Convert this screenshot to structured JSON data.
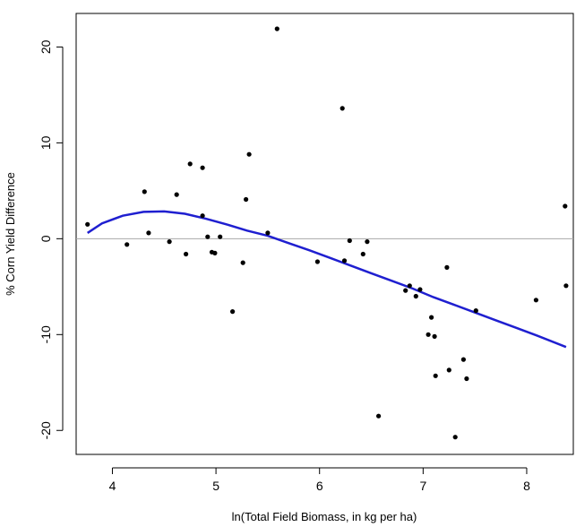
{
  "chart_data": {
    "type": "scatter",
    "title": "",
    "xlabel": "ln(Total Field Biomass, in kg per ha)",
    "ylabel": "% Corn Yield Difference",
    "xlim": [
      3.65,
      8.45
    ],
    "ylim": [
      -22.5,
      23.5
    ],
    "x_ticks": [
      4,
      5,
      6,
      7,
      8
    ],
    "x_tick_labels": [
      "4",
      "5",
      "6",
      "7",
      "8"
    ],
    "y_ticks": [
      -20,
      -10,
      0,
      10,
      20
    ],
    "y_tick_labels": [
      "-20",
      "-10",
      "0",
      "10",
      "20"
    ],
    "grid": false,
    "reference_line": {
      "y": 0,
      "color": "#aaaaaa"
    },
    "colors": {
      "points": "#000000",
      "trend": "#1f1fd0"
    },
    "series": [
      {
        "type": "scatter",
        "points": [
          [
            3.76,
            1.5
          ],
          [
            4.14,
            -0.6
          ],
          [
            4.31,
            4.9
          ],
          [
            4.35,
            0.6
          ],
          [
            4.55,
            -0.3
          ],
          [
            4.62,
            4.6
          ],
          [
            4.71,
            -1.6
          ],
          [
            4.75,
            7.8
          ],
          [
            4.87,
            7.4
          ],
          [
            4.87,
            2.4
          ],
          [
            4.92,
            0.2
          ],
          [
            4.96,
            -1.4
          ],
          [
            4.99,
            -1.5
          ],
          [
            5.04,
            0.2
          ],
          [
            5.16,
            -7.6
          ],
          [
            5.26,
            -2.5
          ],
          [
            5.29,
            4.1
          ],
          [
            5.32,
            8.8
          ],
          [
            5.5,
            0.6
          ],
          [
            5.59,
            21.9
          ],
          [
            5.98,
            -2.4
          ],
          [
            6.22,
            13.6
          ],
          [
            6.24,
            -2.3
          ],
          [
            6.29,
            -0.2
          ],
          [
            6.42,
            -1.6
          ],
          [
            6.46,
            -0.3
          ],
          [
            6.57,
            -18.5
          ],
          [
            6.83,
            -5.4
          ],
          [
            6.87,
            -4.9
          ],
          [
            6.93,
            -6.0
          ],
          [
            6.97,
            -5.3
          ],
          [
            7.05,
            -10.0
          ],
          [
            7.08,
            -8.2
          ],
          [
            7.11,
            -10.2
          ],
          [
            7.12,
            -14.3
          ],
          [
            7.23,
            -3.0
          ],
          [
            7.25,
            -13.7
          ],
          [
            7.31,
            -20.7
          ],
          [
            7.39,
            -12.6
          ],
          [
            7.42,
            -14.6
          ],
          [
            7.51,
            -7.5
          ],
          [
            8.09,
            -6.4
          ],
          [
            8.37,
            3.4
          ],
          [
            8.38,
            -4.9
          ]
        ]
      },
      {
        "type": "line",
        "points": [
          [
            3.76,
            0.6
          ],
          [
            3.9,
            1.6
          ],
          [
            4.1,
            2.4
          ],
          [
            4.3,
            2.8
          ],
          [
            4.5,
            2.85
          ],
          [
            4.7,
            2.6
          ],
          [
            4.9,
            2.1
          ],
          [
            5.1,
            1.5
          ],
          [
            5.3,
            0.85
          ],
          [
            5.5,
            0.3
          ],
          [
            5.7,
            -0.45
          ],
          [
            5.9,
            -1.2
          ],
          [
            6.1,
            -2.0
          ],
          [
            6.3,
            -2.8
          ],
          [
            6.5,
            -3.6
          ],
          [
            6.7,
            -4.4
          ],
          [
            6.9,
            -5.2
          ],
          [
            7.1,
            -6.1
          ],
          [
            7.3,
            -6.9
          ],
          [
            7.5,
            -7.7
          ],
          [
            7.7,
            -8.5
          ],
          [
            7.9,
            -9.3
          ],
          [
            8.1,
            -10.1
          ],
          [
            8.38,
            -11.3
          ]
        ]
      }
    ]
  }
}
